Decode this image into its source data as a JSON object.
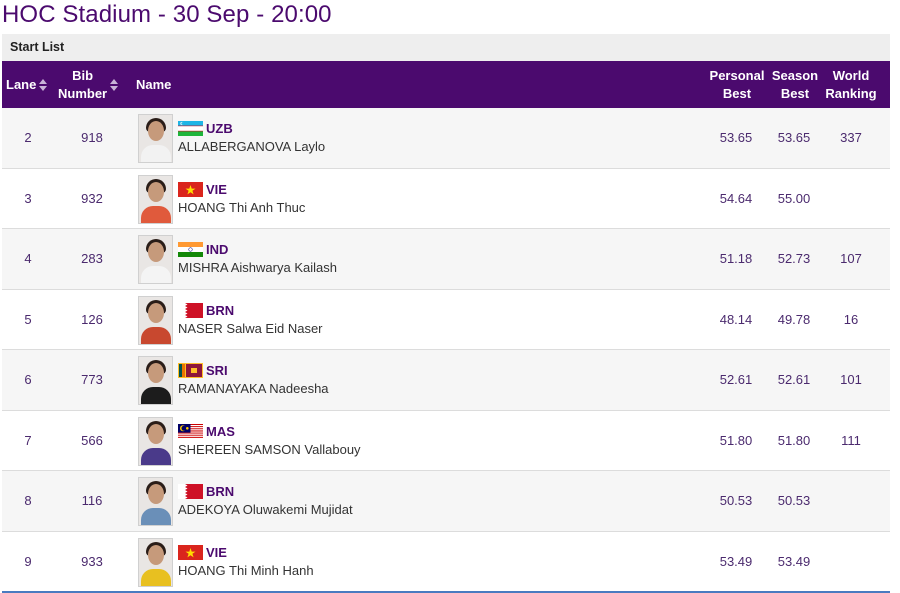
{
  "page": {
    "title": "HOC Stadium - 30 Sep - 20:00",
    "section": "Start List"
  },
  "columns": {
    "lane": "Lane",
    "bib_line1": "Bib",
    "bib_line2": "Number",
    "name": "Name",
    "pb_line1": "Personal",
    "pb_line2": "Best",
    "sb_line1": "Season",
    "sb_line2": "Best",
    "wr_line1": "World",
    "wr_line2": "Ranking"
  },
  "colors": {
    "header_bg": "#4b0a6e",
    "accent_text": "#4b0a6e",
    "row_alt": "#f6f6f6"
  },
  "athletes": [
    {
      "lane": "2",
      "bib": "918",
      "country": "UZB",
      "flag": "uzb-flag-icon",
      "name": "ALLABERGANOVA Laylo",
      "pb": "53.65",
      "sb": "53.65",
      "wr": "337",
      "shirt": "#f2f2f2"
    },
    {
      "lane": "3",
      "bib": "932",
      "country": "VIE",
      "flag": "vie-flag-icon",
      "name": "HOANG Thi Anh Thuc",
      "pb": "54.64",
      "sb": "55.00",
      "wr": "",
      "shirt": "#e05a3c"
    },
    {
      "lane": "4",
      "bib": "283",
      "country": "IND",
      "flag": "ind-flag-icon",
      "name": "MISHRA Aishwarya Kailash",
      "pb": "51.18",
      "sb": "52.73",
      "wr": "107",
      "shirt": "#f4f4f4"
    },
    {
      "lane": "5",
      "bib": "126",
      "country": "BRN",
      "flag": "brn-flag-icon",
      "name": "NASER Salwa Eid Naser",
      "pb": "48.14",
      "sb": "49.78",
      "wr": "16",
      "shirt": "#c8482f"
    },
    {
      "lane": "6",
      "bib": "773",
      "country": "SRI",
      "flag": "sri-flag-icon",
      "name": "RAMANAYAKA Nadeesha",
      "pb": "52.61",
      "sb": "52.61",
      "wr": "101",
      "shirt": "#1c1c1c"
    },
    {
      "lane": "7",
      "bib": "566",
      "country": "MAS",
      "flag": "mas-flag-icon",
      "name": "SHEREEN SAMSON Vallabouy",
      "pb": "51.80",
      "sb": "51.80",
      "wr": "111",
      "shirt": "#4a3a8a"
    },
    {
      "lane": "8",
      "bib": "116",
      "country": "BRN",
      "flag": "brn-flag-icon",
      "name": "ADEKOYA Oluwakemi Mujidat",
      "pb": "50.53",
      "sb": "50.53",
      "wr": "",
      "shirt": "#6a8fb8"
    },
    {
      "lane": "9",
      "bib": "933",
      "country": "VIE",
      "flag": "vie-flag-icon",
      "name": "HOANG Thi Minh Hanh",
      "pb": "53.49",
      "sb": "53.49",
      "wr": "",
      "shirt": "#e8c020"
    }
  ]
}
